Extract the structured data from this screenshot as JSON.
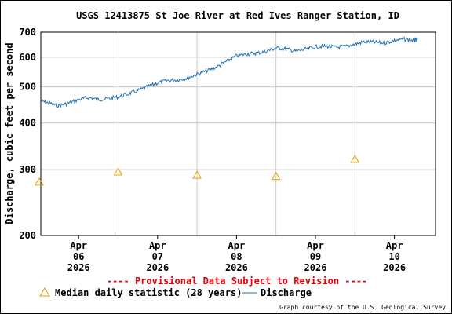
{
  "chart_data": {
    "type": "line",
    "title": "USGS 12413875 St Joe River at Red Ives Ranger Station, ID",
    "ylabel": "Discharge, cubic feet per second",
    "xlabel": "",
    "y_scale": "log",
    "ylim": [
      200,
      700
    ],
    "y_ticks": [
      {
        "value": 200,
        "label": "200"
      },
      {
        "value": 300,
        "label": "300"
      },
      {
        "value": 400,
        "label": "400"
      },
      {
        "value": 500,
        "label": "500"
      },
      {
        "value": 600,
        "label": "600"
      },
      {
        "value": 700,
        "label": "700"
      }
    ],
    "xlim": [
      "2026-04-05T12:30",
      "2026-04-10T12:30"
    ],
    "x_ticks": [
      {
        "value": "2026-04-06T00:00",
        "month": "Apr",
        "day": "06",
        "year": "2026"
      },
      {
        "value": "2026-04-07T00:00",
        "month": "Apr",
        "day": "07",
        "year": "2026"
      },
      {
        "value": "2026-04-08T00:00",
        "month": "Apr",
        "day": "08",
        "year": "2026"
      },
      {
        "value": "2026-04-09T00:00",
        "month": "Apr",
        "day": "09",
        "year": "2026"
      },
      {
        "value": "2026-04-10T00:00",
        "month": "Apr",
        "day": "10",
        "year": "2026"
      }
    ],
    "grid": true,
    "legend_position": "bottom",
    "series": [
      {
        "name": "Discharge",
        "style": "line",
        "color": "#1f6fb0",
        "points": [
          [
            "2026-04-05T12:30",
            458
          ],
          [
            "2026-04-05T15:00",
            452
          ],
          [
            "2026-04-05T18:00",
            445
          ],
          [
            "2026-04-05T21:00",
            452
          ],
          [
            "2026-04-06T00:00",
            462
          ],
          [
            "2026-04-06T03:00",
            468
          ],
          [
            "2026-04-06T06:00",
            462
          ],
          [
            "2026-04-06T09:00",
            465
          ],
          [
            "2026-04-06T12:00",
            470
          ],
          [
            "2026-04-06T15:00",
            478
          ],
          [
            "2026-04-06T18:00",
            488
          ],
          [
            "2026-04-06T21:00",
            500
          ],
          [
            "2026-04-07T00:00",
            512
          ],
          [
            "2026-04-07T03:00",
            520
          ],
          [
            "2026-04-07T06:00",
            522
          ],
          [
            "2026-04-07T09:00",
            528
          ],
          [
            "2026-04-07T12:00",
            540
          ],
          [
            "2026-04-07T15:00",
            552
          ],
          [
            "2026-04-07T18:00",
            565
          ],
          [
            "2026-04-07T21:00",
            585
          ],
          [
            "2026-04-08T00:00",
            605
          ],
          [
            "2026-04-08T03:00",
            612
          ],
          [
            "2026-04-08T06:00",
            615
          ],
          [
            "2026-04-08T09:00",
            622
          ],
          [
            "2026-04-08T12:00",
            635
          ],
          [
            "2026-04-08T15:00",
            632
          ],
          [
            "2026-04-08T18:00",
            622
          ],
          [
            "2026-04-08T21:00",
            630
          ],
          [
            "2026-04-09T00:00",
            640
          ],
          [
            "2026-04-09T03:00",
            642
          ],
          [
            "2026-04-09T06:00",
            638
          ],
          [
            "2026-04-09T09:00",
            640
          ],
          [
            "2026-04-09T12:00",
            650
          ],
          [
            "2026-04-09T15:00",
            660
          ],
          [
            "2026-04-09T18:00",
            658
          ],
          [
            "2026-04-09T21:00",
            655
          ],
          [
            "2026-04-10T00:00",
            665
          ],
          [
            "2026-04-10T03:00",
            670
          ],
          [
            "2026-04-10T06:00",
            665
          ],
          [
            "2026-04-10T07:00",
            668
          ]
        ]
      },
      {
        "name": "Median daily statistic (28 years)",
        "style": "triangle-markers",
        "color": "#e69f00",
        "points": [
          [
            "2026-04-05T12:00",
            278
          ],
          [
            "2026-04-06T12:00",
            296
          ],
          [
            "2026-04-07T12:00",
            290
          ],
          [
            "2026-04-08T12:00",
            288
          ],
          [
            "2026-04-09T12:00",
            320
          ]
        ]
      }
    ]
  },
  "notices": {
    "provisional": "---- Provisional Data Subject to Revision ----",
    "credit": "Graph courtesy of the U.S. Geological Survey"
  },
  "legend": {
    "median_label": "Median daily statistic (28 years)",
    "discharge_label": "Discharge"
  },
  "colors": {
    "axis": "#000000",
    "grid": "#c8c8c8",
    "provisional": "#e8000a"
  }
}
